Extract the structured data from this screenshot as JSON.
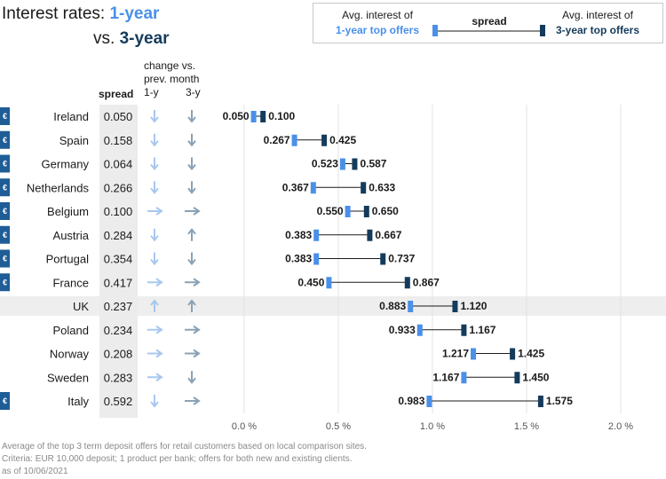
{
  "header": {
    "title_prefix": "Interest rates: ",
    "title_1y": "1-year",
    "title_vs": "vs. ",
    "title_3y": "3-year"
  },
  "legend": {
    "left_line1": "Avg. interest of",
    "left_line2": "1-year top offers",
    "spread": "spread",
    "right_line1": "Avg. interest of",
    "right_line2": "3-year top offers"
  },
  "columns": {
    "spread": "spread",
    "change_line1": "change vs.",
    "change_line2": "prev. month",
    "change_1y": "1-y",
    "change_3y": "3-y"
  },
  "footer": {
    "line1": "Average of the top 3 term deposit offers for retail customers based on local comparison sites.",
    "line2": "Criteria: EUR 10,000 deposit; 1 product per bank; offers for both new and existing clients.",
    "line3": "as of 10/06/2021"
  },
  "colors": {
    "one_year": "#4a90e8",
    "three_year": "#143b5c",
    "arrow_1y": "#a8c8ee",
    "arrow_3y": "#8aa2b6",
    "euro_badge": "#1f5d96"
  },
  "chart_data": {
    "type": "dumbbell",
    "title": "Interest rates: 1-year vs. 3-year",
    "x_ticks": [
      "0.0 %",
      "0.5 %",
      "1.0 %",
      "1.5 %",
      "2.0 %"
    ],
    "x_tick_values": [
      0,
      0.5,
      1.0,
      1.5,
      2.0
    ],
    "xlim": [
      0,
      2.0
    ],
    "grid": true,
    "highlighted": "UK",
    "rows": [
      {
        "country": "Ireland",
        "euro": true,
        "spread": "0.050",
        "one_year": 0.05,
        "three_year": 0.1,
        "one_year_label": "0.050",
        "three_year_label": "0.100",
        "change_1y": "down",
        "change_3y": "down"
      },
      {
        "country": "Spain",
        "euro": true,
        "spread": "0.158",
        "one_year": 0.267,
        "three_year": 0.425,
        "one_year_label": "0.267",
        "three_year_label": "0.425",
        "change_1y": "down",
        "change_3y": "down"
      },
      {
        "country": "Germany",
        "euro": true,
        "spread": "0.064",
        "one_year": 0.523,
        "three_year": 0.587,
        "one_year_label": "0.523",
        "three_year_label": "0.587",
        "change_1y": "down",
        "change_3y": "down"
      },
      {
        "country": "Netherlands",
        "euro": true,
        "spread": "0.266",
        "one_year": 0.367,
        "three_year": 0.633,
        "one_year_label": "0.367",
        "three_year_label": "0.633",
        "change_1y": "down",
        "change_3y": "down"
      },
      {
        "country": "Belgium",
        "euro": true,
        "spread": "0.100",
        "one_year": 0.55,
        "three_year": 0.65,
        "one_year_label": "0.550",
        "three_year_label": "0.650",
        "change_1y": "right",
        "change_3y": "right"
      },
      {
        "country": "Austria",
        "euro": true,
        "spread": "0.284",
        "one_year": 0.383,
        "three_year": 0.667,
        "one_year_label": "0.383",
        "three_year_label": "0.667",
        "change_1y": "down",
        "change_3y": "up"
      },
      {
        "country": "Portugal",
        "euro": true,
        "spread": "0.354",
        "one_year": 0.383,
        "three_year": 0.737,
        "one_year_label": "0.383",
        "three_year_label": "0.737",
        "change_1y": "down",
        "change_3y": "down"
      },
      {
        "country": "France",
        "euro": true,
        "spread": "0.417",
        "one_year": 0.45,
        "three_year": 0.867,
        "one_year_label": "0.450",
        "three_year_label": "0.867",
        "change_1y": "right",
        "change_3y": "right"
      },
      {
        "country": "UK",
        "euro": false,
        "spread": "0.237",
        "one_year": 0.883,
        "three_year": 1.12,
        "one_year_label": "0.883",
        "three_year_label": "1.120",
        "change_1y": "up",
        "change_3y": "up"
      },
      {
        "country": "Poland",
        "euro": false,
        "spread": "0.234",
        "one_year": 0.933,
        "three_year": 1.167,
        "one_year_label": "0.933",
        "three_year_label": "1.167",
        "change_1y": "right",
        "change_3y": "right"
      },
      {
        "country": "Norway",
        "euro": false,
        "spread": "0.208",
        "one_year": 1.217,
        "three_year": 1.425,
        "one_year_label": "1.217",
        "three_year_label": "1.425",
        "change_1y": "right",
        "change_3y": "right"
      },
      {
        "country": "Sweden",
        "euro": false,
        "spread": "0.283",
        "one_year": 1.167,
        "three_year": 1.45,
        "one_year_label": "1.167",
        "three_year_label": "1.450",
        "change_1y": "right",
        "change_3y": "down"
      },
      {
        "country": "Italy",
        "euro": true,
        "spread": "0.592",
        "one_year": 0.983,
        "three_year": 1.575,
        "one_year_label": "0.983",
        "three_year_label": "1.575",
        "change_1y": "down",
        "change_3y": "right"
      }
    ]
  }
}
